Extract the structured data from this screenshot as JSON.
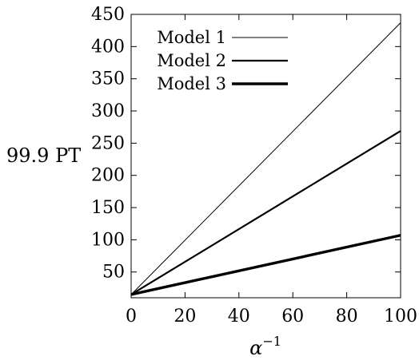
{
  "chart_data": {
    "type": "line",
    "title": "",
    "xlabel": "α",
    "xlabel_superscript": "−1",
    "ylabel": "99.9 PT",
    "xlim": [
      0,
      100
    ],
    "ylim": [
      10,
      450
    ],
    "xticks": [
      0,
      20,
      40,
      60,
      80,
      100
    ],
    "xtick_labels": [
      "0",
      "20",
      "40",
      "60",
      "80",
      "100"
    ],
    "yticks": [
      50,
      100,
      150,
      200,
      250,
      300,
      350,
      400,
      450
    ],
    "ytick_labels": [
      "50",
      "100",
      "150",
      "200",
      "250",
      "300",
      "350",
      "400",
      "450"
    ],
    "grid": false,
    "legend_position": "top-left",
    "series": [
      {
        "name": "Model 1",
        "x": [
          0,
          100
        ],
        "y": [
          15,
          437
        ],
        "color": "#000000"
      },
      {
        "name": "Model 2",
        "x": [
          0,
          100
        ],
        "y": [
          15,
          269
        ],
        "color": "#000000"
      },
      {
        "name": "Model 3",
        "x": [
          0,
          100
        ],
        "y": [
          15,
          107
        ],
        "color": "#000000"
      }
    ]
  }
}
